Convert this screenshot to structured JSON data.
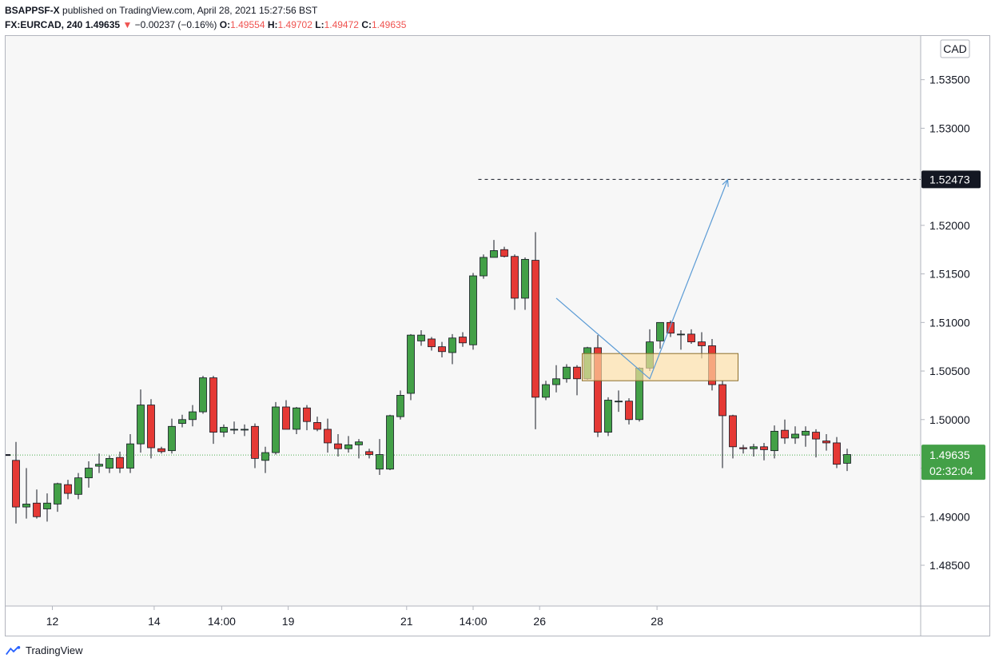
{
  "header": {
    "publisher": "BSAPPSF-X",
    "published_text": "published on TradingView.com, April 28, 2021 15:27:56 BST",
    "symbol": "FX:EURCAD, 240",
    "last": "1.49635",
    "arrow": "▼",
    "change": "−0.00237 (−0.16%)",
    "o_label": "O:",
    "o_value": "1.49554",
    "h_label": "H:",
    "h_value": "1.49702",
    "l_label": "L:",
    "l_value": "1.49472",
    "c_label": "C:",
    "c_value": "1.49635"
  },
  "footer": {
    "brand": "TradingView"
  },
  "axis": {
    "currency": "CAD",
    "target_label": "1.52473",
    "price_label": "1.49635",
    "countdown": "02:32:04"
  },
  "colors": {
    "up": "#43a047",
    "down": "#e53935",
    "zone_fill": "#ffe0a6",
    "zone_stroke": "#8d6e2b",
    "arrow": "#5b9bd5",
    "price_line": "#4caf50",
    "background": "#f7f7f7"
  },
  "chart_data": {
    "type": "candlestick",
    "symbol": "FX:EURCAD",
    "interval": "240",
    "ylim": [
      1.4808,
      1.5395
    ],
    "y_ticks": [
      "1.48500",
      "1.49000",
      "1.49500",
      "1.50000",
      "1.50500",
      "1.51000",
      "1.51500",
      "1.52000",
      "1.52500",
      "1.53000",
      "1.53500"
    ],
    "x_ticks": [
      {
        "label": "12",
        "bar": 3.5
      },
      {
        "label": "14",
        "bar": 13.3
      },
      {
        "label": "14:00",
        "bar": 19.8
      },
      {
        "label": "19",
        "bar": 26.2
      },
      {
        "label": "21",
        "bar": 37.6
      },
      {
        "label": "14:00",
        "bar": 44.0
      },
      {
        "label": "26",
        "bar": 50.4
      },
      {
        "label": "28",
        "bar": 61.7
      }
    ],
    "candles": [
      {
        "o": 1.4958,
        "h": 1.4977,
        "l": 1.4893,
        "c": 1.491
      },
      {
        "o": 1.491,
        "h": 1.495,
        "l": 1.4898,
        "c": 1.4913
      },
      {
        "o": 1.4914,
        "h": 1.4928,
        "l": 1.4898,
        "c": 1.49
      },
      {
        "o": 1.4908,
        "h": 1.4924,
        "l": 1.4895,
        "c": 1.4914
      },
      {
        "o": 1.4913,
        "h": 1.4935,
        "l": 1.4905,
        "c": 1.4934
      },
      {
        "o": 1.4933,
        "h": 1.4938,
        "l": 1.4918,
        "c": 1.4924
      },
      {
        "o": 1.4923,
        "h": 1.4945,
        "l": 1.4918,
        "c": 1.494
      },
      {
        "o": 1.494,
        "h": 1.4957,
        "l": 1.493,
        "c": 1.495
      },
      {
        "o": 1.4952,
        "h": 1.4965,
        "l": 1.4945,
        "c": 1.4954
      },
      {
        "o": 1.495,
        "h": 1.4963,
        "l": 1.4945,
        "c": 1.496
      },
      {
        "o": 1.4961,
        "h": 1.4967,
        "l": 1.4945,
        "c": 1.495
      },
      {
        "o": 1.495,
        "h": 1.4985,
        "l": 1.4945,
        "c": 1.4975
      },
      {
        "o": 1.4975,
        "h": 1.5031,
        "l": 1.4966,
        "c": 1.5015
      },
      {
        "o": 1.5015,
        "h": 1.5021,
        "l": 1.496,
        "c": 1.4971
      },
      {
        "o": 1.497,
        "h": 1.4972,
        "l": 1.4965,
        "c": 1.4967
      },
      {
        "o": 1.4968,
        "h": 1.5001,
        "l": 1.4965,
        "c": 1.4993
      },
      {
        "o": 1.4996,
        "h": 1.5005,
        "l": 1.4992,
        "c": 1.5
      },
      {
        "o": 1.5,
        "h": 1.5015,
        "l": 1.4993,
        "c": 1.5008
      },
      {
        "o": 1.5008,
        "h": 1.5045,
        "l": 1.5006,
        "c": 1.5043
      },
      {
        "o": 1.5043,
        "h": 1.5045,
        "l": 1.4975,
        "c": 1.4987
      },
      {
        "o": 1.4987,
        "h": 1.4995,
        "l": 1.4982,
        "c": 1.4992
      },
      {
        "o": 1.499,
        "h": 1.4998,
        "l": 1.4985,
        "c": 1.499
      },
      {
        "o": 1.499,
        "h": 1.4995,
        "l": 1.4983,
        "c": 1.499
      },
      {
        "o": 1.4993,
        "h": 1.4996,
        "l": 1.495,
        "c": 1.496
      },
      {
        "o": 1.4958,
        "h": 1.4972,
        "l": 1.4945,
        "c": 1.4966
      },
      {
        "o": 1.4966,
        "h": 1.5018,
        "l": 1.4964,
        "c": 1.5013
      },
      {
        "o": 1.5013,
        "h": 1.502,
        "l": 1.499,
        "c": 1.499
      },
      {
        "o": 1.499,
        "h": 1.5013,
        "l": 1.4985,
        "c": 1.5012
      },
      {
        "o": 1.5012,
        "h": 1.5015,
        "l": 1.4989,
        "c": 1.4998
      },
      {
        "o": 1.4997,
        "h": 1.5003,
        "l": 1.4988,
        "c": 1.499
      },
      {
        "o": 1.499,
        "h": 1.5001,
        "l": 1.4966,
        "c": 1.4976
      },
      {
        "o": 1.4975,
        "h": 1.4985,
        "l": 1.4962,
        "c": 1.497
      },
      {
        "o": 1.497,
        "h": 1.4983,
        "l": 1.4966,
        "c": 1.4974
      },
      {
        "o": 1.4974,
        "h": 1.498,
        "l": 1.496,
        "c": 1.4977
      },
      {
        "o": 1.4967,
        "h": 1.497,
        "l": 1.496,
        "c": 1.4964
      },
      {
        "o": 1.4949,
        "h": 1.498,
        "l": 1.4943,
        "c": 1.4964
      },
      {
        "o": 1.4949,
        "h": 1.5005,
        "l": 1.4948,
        "c": 1.5004
      },
      {
        "o": 1.5003,
        "h": 1.503,
        "l": 1.5,
        "c": 1.5025
      },
      {
        "o": 1.5027,
        "h": 1.5088,
        "l": 1.502,
        "c": 1.5087
      },
      {
        "o": 1.5081,
        "h": 1.5092,
        "l": 1.5076,
        "c": 1.5087
      },
      {
        "o": 1.5083,
        "h": 1.5085,
        "l": 1.5071,
        "c": 1.5075
      },
      {
        "o": 1.5075,
        "h": 1.508,
        "l": 1.5064,
        "c": 1.507
      },
      {
        "o": 1.5069,
        "h": 1.5088,
        "l": 1.5057,
        "c": 1.5084
      },
      {
        "o": 1.5085,
        "h": 1.509,
        "l": 1.5075,
        "c": 1.5079
      },
      {
        "o": 1.5077,
        "h": 1.5151,
        "l": 1.5072,
        "c": 1.5148
      },
      {
        "o": 1.5148,
        "h": 1.517,
        "l": 1.5145,
        "c": 1.5167
      },
      {
        "o": 1.5167,
        "h": 1.5185,
        "l": 1.5167,
        "c": 1.5174
      },
      {
        "o": 1.5175,
        "h": 1.5178,
        "l": 1.5167,
        "c": 1.5168
      },
      {
        "o": 1.5168,
        "h": 1.517,
        "l": 1.5113,
        "c": 1.5125
      },
      {
        "o": 1.5125,
        "h": 1.5167,
        "l": 1.5113,
        "c": 1.5165
      },
      {
        "o": 1.5164,
        "h": 1.5193,
        "l": 1.499,
        "c": 1.5023
      },
      {
        "o": 1.5023,
        "h": 1.504,
        "l": 1.502,
        "c": 1.5036
      },
      {
        "o": 1.5036,
        "h": 1.5056,
        "l": 1.5028,
        "c": 1.5042
      },
      {
        "o": 1.5042,
        "h": 1.5057,
        "l": 1.5038,
        "c": 1.5054
      },
      {
        "o": 1.5054,
        "h": 1.5056,
        "l": 1.5025,
        "c": 1.5042
      },
      {
        "o": 1.5042,
        "h": 1.5075,
        "l": 1.5041,
        "c": 1.5074
      },
      {
        "o": 1.5074,
        "h": 1.5087,
        "l": 1.4982,
        "c": 1.4987
      },
      {
        "o": 1.4987,
        "h": 1.5023,
        "l": 1.4983,
        "c": 1.502
      },
      {
        "o": 1.5019,
        "h": 1.503,
        "l": 1.5008,
        "c": 1.5019
      },
      {
        "o": 1.5019,
        "h": 1.5022,
        "l": 1.4995,
        "c": 1.5
      },
      {
        "o": 1.5,
        "h": 1.5054,
        "l": 1.4998,
        "c": 1.5053
      },
      {
        "o": 1.5053,
        "h": 1.5093,
        "l": 1.505,
        "c": 1.508
      },
      {
        "o": 1.5081,
        "h": 1.51,
        "l": 1.5073,
        "c": 1.51
      },
      {
        "o": 1.51,
        "h": 1.5102,
        "l": 1.5085,
        "c": 1.5089
      },
      {
        "o": 1.5088,
        "h": 1.5092,
        "l": 1.5072,
        "c": 1.5088
      },
      {
        "o": 1.5088,
        "h": 1.5093,
        "l": 1.5078,
        "c": 1.508
      },
      {
        "o": 1.508,
        "h": 1.509,
        "l": 1.5063,
        "c": 1.5076
      },
      {
        "o": 1.5076,
        "h": 1.5083,
        "l": 1.503,
        "c": 1.5036
      },
      {
        "o": 1.5036,
        "h": 1.504,
        "l": 1.495,
        "c": 1.5004
      },
      {
        "o": 1.5004,
        "h": 1.5005,
        "l": 1.496,
        "c": 1.4972
      },
      {
        "o": 1.4971,
        "h": 1.4974,
        "l": 1.4965,
        "c": 1.497
      },
      {
        "o": 1.497,
        "h": 1.4975,
        "l": 1.4962,
        "c": 1.4972
      },
      {
        "o": 1.4972,
        "h": 1.4976,
        "l": 1.4958,
        "c": 1.4969
      },
      {
        "o": 1.4968,
        "h": 1.4994,
        "l": 1.496,
        "c": 1.4988
      },
      {
        "o": 1.4989,
        "h": 1.5,
        "l": 1.4975,
        "c": 1.4981
      },
      {
        "o": 1.4981,
        "h": 1.4993,
        "l": 1.4975,
        "c": 1.4985
      },
      {
        "o": 1.4984,
        "h": 1.4993,
        "l": 1.4972,
        "c": 1.4988
      },
      {
        "o": 1.4987,
        "h": 1.499,
        "l": 1.4961,
        "c": 1.498
      },
      {
        "o": 1.4978,
        "h": 1.4985,
        "l": 1.4968,
        "c": 1.4976
      },
      {
        "o": 1.4976,
        "h": 1.4982,
        "l": 1.495,
        "c": 1.4954
      },
      {
        "o": 1.4955,
        "h": 1.497,
        "l": 1.4947,
        "c": 1.4964
      }
    ],
    "last_price": 1.49635,
    "target_price": 1.52473,
    "zone": {
      "bar_start": 54.5,
      "bar_end": 69.5,
      "top": 1.5068,
      "bottom": 1.504
    },
    "arrow_path": [
      {
        "bar": 52.0,
        "price": 1.5125
      },
      {
        "bar": 61.0,
        "price": 1.5042
      },
      {
        "bar": 68.5,
        "price": 1.5247
      }
    ]
  }
}
